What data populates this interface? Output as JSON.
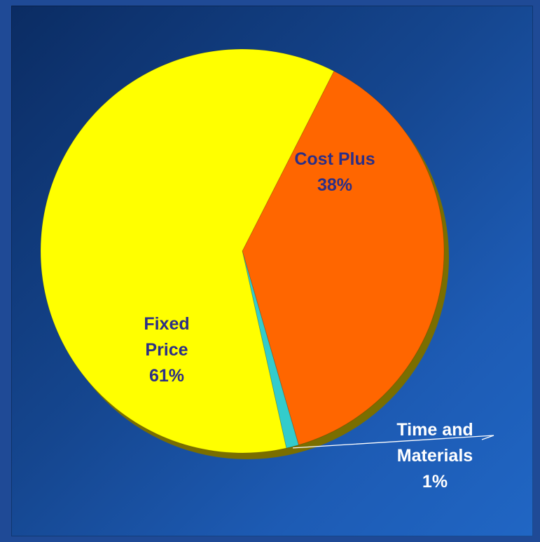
{
  "chart_data": {
    "type": "pie",
    "slices": [
      {
        "label": [
          "Cost Plus"
        ],
        "pct_label": "38%",
        "value": 38,
        "color": "#ff6600",
        "text_color": "#2c2f86"
      },
      {
        "label": [
          "Time and",
          "Materials"
        ],
        "pct_label": "1%",
        "value": 1,
        "color": "#33cccc",
        "text_color": "#ffffff"
      },
      {
        "label": [
          "Fixed",
          "Price"
        ],
        "pct_label": "61%",
        "value": 61,
        "color": "#ffff00",
        "text_color": "#2c2f86"
      }
    ],
    "legend": "none",
    "style": "3d-shadow"
  },
  "colors": {
    "background_dark": "#0b2c63",
    "background_light": "#2066c4",
    "frame": "#1f4a96",
    "shadow": "#7a6e00"
  }
}
